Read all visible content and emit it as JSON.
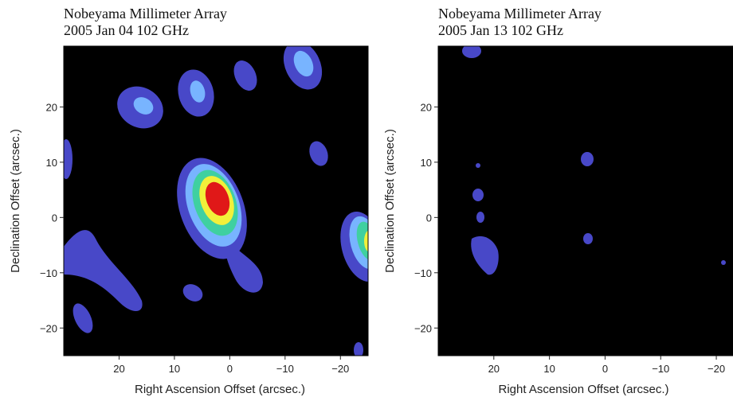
{
  "chart_data": [
    {
      "type": "contour",
      "title": "Nobeyama Millimeter Array",
      "subtitle": "2005 Jan 04  102 GHz",
      "xlabel": "Right Ascension Offset (arcsec.)",
      "ylabel": "Declination Offset (arcsec.)",
      "xlim": [
        30,
        -25
      ],
      "ylim": [
        -25,
        31
      ],
      "xticks": [
        20,
        10,
        0,
        {
          "value": -10,
          "label": "−10"
        },
        {
          "value": -20,
          "label": "−20"
        }
      ],
      "yticks": [
        {
          "value": -20,
          "label": "−20"
        },
        {
          "value": -10,
          "label": "−10"
        },
        0,
        10,
        20
      ]
    },
    {
      "type": "contour",
      "title": "Nobeyama Millimeter Array",
      "subtitle": "2005 Jan 13  102 GHz",
      "xlabel": "Right Ascension Offset (arcsec.)",
      "ylabel": "Declination Offset (arcsec.)",
      "xlim": [
        30,
        -23
      ],
      "ylim": [
        -25,
        31
      ],
      "xticks": [
        20,
        10,
        0,
        {
          "value": -10,
          "label": "−10"
        },
        {
          "value": -20,
          "label": "−20"
        }
      ],
      "yticks": [
        {
          "value": -20,
          "label": "−20"
        },
        {
          "value": -10,
          "label": "−10"
        },
        0,
        10,
        20
      ]
    }
  ]
}
